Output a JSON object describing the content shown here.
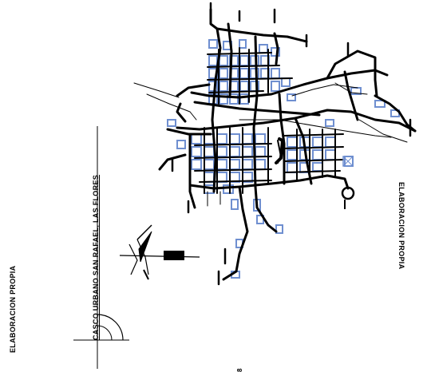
{
  "map": {
    "title": "CASCO URBANO SAN RAFAEL, LAS FLORES",
    "credit_left": "ELABORACION PROPIA",
    "credit_right": "ELABORACION PROPIA",
    "page_mark": "8",
    "colors": {
      "roads": "#000000",
      "blocks": "#6f8fd0",
      "background": "#ffffff"
    },
    "icons": [
      "north-arrow-icon",
      "compass-quadrant-icon"
    ]
  }
}
